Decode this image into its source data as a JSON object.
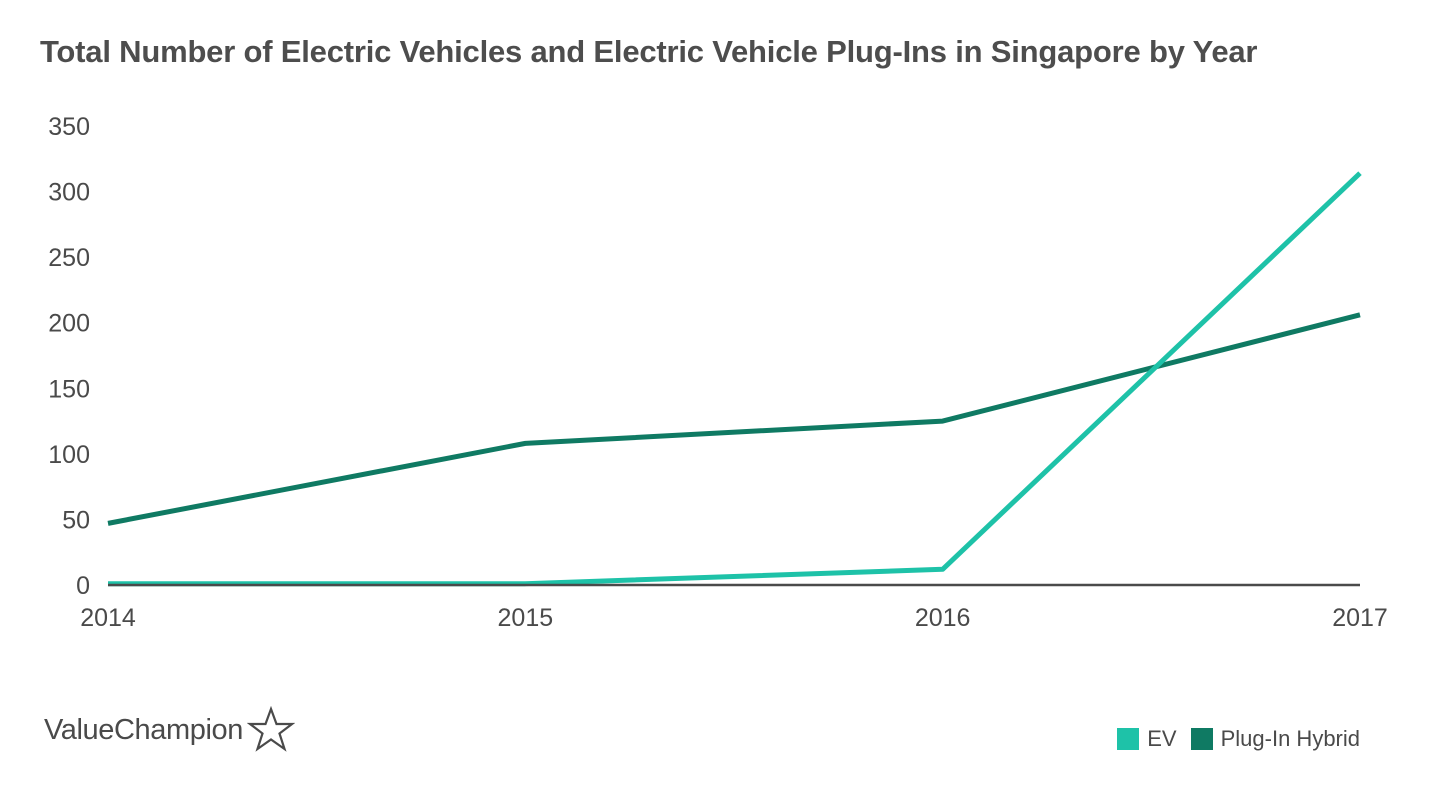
{
  "title": "Total Number of Electric Vehicles and Electric Vehicle Plug-Ins in Singapore by Year",
  "brand": {
    "name": "ValueChampion",
    "logo_icon": "star-outline-icon"
  },
  "legend": [
    {
      "label": "EV",
      "color": "#1ec2a8"
    },
    {
      "label": "Plug-In Hybrid",
      "color": "#0f7a63"
    }
  ],
  "chart_data": {
    "type": "line",
    "title": "Total Number of Electric Vehicles and Electric Vehicle Plug-Ins in Singapore by Year",
    "x": [
      "2014",
      "2015",
      "2016",
      "2017"
    ],
    "series": [
      {
        "name": "EV",
        "color": "#1ec2a8",
        "values": [
          1,
          1,
          12,
          314
        ]
      },
      {
        "name": "Plug-In Hybrid",
        "color": "#0f7a63",
        "values": [
          47,
          108,
          125,
          206
        ]
      }
    ],
    "yticks": [
      0,
      50,
      100,
      150,
      200,
      250,
      300,
      350
    ],
    "ylim": [
      0,
      350
    ],
    "xlabel": "",
    "ylabel": "",
    "grid": false,
    "legend_position": "bottom-right"
  }
}
